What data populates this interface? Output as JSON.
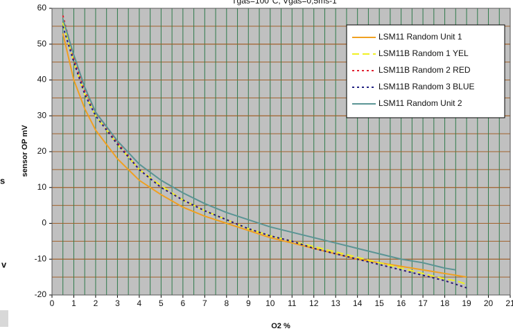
{
  "chart_data": {
    "type": "line",
    "title": "Tgas=100°C, Vgas=0,5ms-1",
    "x_label": "O2 %",
    "y_label": "sensor OP mV",
    "fragments": [
      "s",
      "v"
    ],
    "x": [
      0.5,
      1,
      1.5,
      2,
      3,
      4,
      5,
      6,
      7,
      8,
      9,
      10,
      11,
      12,
      13,
      14,
      15,
      16,
      17,
      18,
      18.5,
      19
    ],
    "series": [
      {
        "name": "LSM11 Random Unit 1",
        "color": "#f0a020",
        "dash": "none",
        "values": [
          53,
          40,
          32,
          26,
          18,
          12,
          8,
          4.5,
          2,
          0,
          -2,
          -4,
          -5.5,
          -7,
          -8.5,
          -10,
          -11,
          -12,
          -13,
          -14,
          -14.5,
          -15
        ]
      },
      {
        "name": "LSM11B Random 1 YEL",
        "color": "#f0f020",
        "dash": "10 5",
        "values": [
          56,
          45,
          36,
          30,
          22,
          15,
          10.5,
          6.5,
          3.5,
          1,
          -1.5,
          -3.5,
          -5,
          -6.5,
          -8,
          -9.5,
          -11,
          -12.5,
          -14,
          -15.5,
          -16,
          -17
        ]
      },
      {
        "name": "LSM11B Random 2 RED",
        "color": "#e02030",
        "dash": "3 4",
        "values": [
          58,
          46,
          37,
          31,
          22.5,
          15,
          10,
          6.5,
          3.5,
          1,
          -1.5,
          -3.5,
          -5,
          -7,
          -8.5,
          -10,
          -11.5,
          -13,
          -14.5,
          -16,
          -17,
          -18
        ]
      },
      {
        "name": "LSM11B Random 3 BLUE",
        "color": "#202080",
        "dash": "3 4",
        "values": [
          55,
          45,
          36,
          30,
          22,
          15,
          10,
          6.5,
          3.5,
          1,
          -1.5,
          -3.5,
          -5,
          -7,
          -8.5,
          -10,
          -11.5,
          -13,
          -14.5,
          -16,
          -17,
          -18
        ]
      },
      {
        "name": "LSM11 Random Unit 2",
        "color": "#5a9494",
        "dash": "none",
        "values": [
          57,
          47,
          38,
          31,
          23,
          16.5,
          12,
          8.5,
          5.5,
          3,
          1,
          -1,
          -2.5,
          -4,
          -5.5,
          -7,
          -8.5,
          -10,
          -11,
          -12.5,
          -13,
          null
        ]
      }
    ],
    "xlim": [
      0,
      21
    ],
    "ylim": [
      -20,
      60
    ],
    "xticks": [
      0,
      1,
      2,
      3,
      4,
      5,
      6,
      7,
      8,
      9,
      10,
      11,
      12,
      13,
      14,
      15,
      16,
      17,
      18,
      19,
      20,
      21
    ],
    "yticks": [
      -20,
      -10,
      0,
      10,
      20,
      30,
      40,
      50,
      60
    ],
    "xgrid": [
      0.5,
      1,
      1.5,
      2,
      2.5,
      3,
      3.5,
      4,
      4.5,
      5,
      5.5,
      6,
      6.5,
      7,
      7.5,
      8,
      8.5,
      9,
      9.5,
      10,
      10.5,
      11,
      11.5,
      12,
      12.5,
      13,
      13.5,
      14,
      14.5,
      15,
      15.5,
      16,
      16.5,
      17,
      17.5,
      18,
      18.5,
      19,
      19.5,
      20,
      20.5
    ],
    "ygrid": [
      -15,
      -10,
      -5,
      0,
      5,
      10,
      15,
      20,
      25,
      30,
      35,
      40,
      45,
      50,
      55
    ],
    "legend": "top-right"
  }
}
